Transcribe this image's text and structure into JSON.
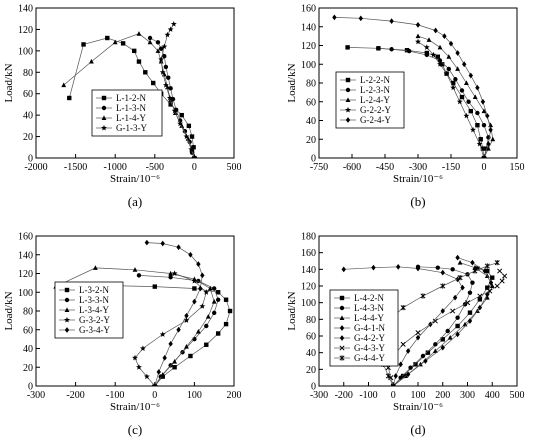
{
  "chart_data": [
    {
      "type": "line",
      "panel_label": "(a)",
      "xlabel": "Strain/10⁻⁶",
      "ylabel": "Load/kN",
      "xlim": [
        -2000,
        500
      ],
      "ylim": [
        0,
        140
      ],
      "xticks": [
        -2000,
        -1500,
        -1000,
        -500,
        0,
        500
      ],
      "yticks": [
        0,
        20,
        40,
        60,
        80,
        100,
        120,
        140
      ],
      "legend_position": "lower-left",
      "series": [
        {
          "name": "L-1-2-N",
          "marker": "square",
          "x": [
            0,
            -10,
            -30,
            -70,
            -160,
            -300,
            -420,
            -520,
            -620,
            -700,
            -760,
            -900,
            -1100,
            -1400,
            -1580
          ],
          "y": [
            0,
            10,
            20,
            30,
            40,
            50,
            60,
            70,
            80,
            90,
            100,
            107,
            112,
            106,
            56
          ]
        },
        {
          "name": "L-1-3-N",
          "marker": "circle",
          "x": [
            0,
            -30,
            -60,
            -120,
            -180,
            -230,
            -270,
            -300,
            -330,
            -360,
            -380,
            -420,
            -460,
            -560
          ],
          "y": [
            0,
            5,
            15,
            25,
            35,
            45,
            55,
            65,
            75,
            85,
            95,
            102,
            108,
            112
          ]
        },
        {
          "name": "L-1-4-Y",
          "marker": "triangle",
          "x": [
            0,
            -30,
            -80,
            -160,
            -240,
            -300,
            -340,
            -380,
            -420,
            -460,
            -560,
            -700,
            -1000,
            -1300,
            -1650
          ],
          "y": [
            0,
            8,
            18,
            30,
            42,
            54,
            66,
            78,
            90,
            100,
            108,
            116,
            108,
            90,
            68
          ]
        },
        {
          "name": "G-1-3-Y",
          "marker": "star",
          "x": [
            0,
            -40,
            -100,
            -180,
            -250,
            -310,
            -360,
            -400,
            -420,
            -380,
            -340,
            -300,
            -260
          ],
          "y": [
            0,
            8,
            20,
            32,
            44,
            56,
            68,
            80,
            92,
            104,
            115,
            120,
            125
          ]
        }
      ]
    },
    {
      "type": "line",
      "panel_label": "(b)",
      "xlabel": "Strain/10⁻⁶",
      "ylabel": "Load/kN",
      "xlim": [
        -750,
        150
      ],
      "ylim": [
        0,
        160
      ],
      "xticks": [
        -750,
        -600,
        -450,
        -300,
        -150,
        0,
        150
      ],
      "yticks": [
        0,
        20,
        40,
        60,
        80,
        100,
        120,
        140,
        160
      ],
      "legend_position": "center-left",
      "series": [
        {
          "name": "L-2-2-N",
          "marker": "square",
          "x": [
            0,
            -5,
            -15,
            -30,
            -60,
            -100,
            -140,
            -170,
            -190,
            -210,
            -260,
            -350,
            -480,
            -620
          ],
          "y": [
            0,
            10,
            20,
            35,
            50,
            65,
            80,
            90,
            100,
            108,
            112,
            115,
            117,
            118
          ]
        },
        {
          "name": "L-2-3-N",
          "marker": "circle",
          "x": [
            0,
            10,
            20,
            0,
            -30,
            -70,
            -100,
            -130,
            -160,
            -200,
            -260,
            -340,
            -420,
            -480
          ],
          "y": [
            0,
            10,
            22,
            35,
            48,
            60,
            72,
            84,
            95,
            104,
            110,
            114,
            116,
            117
          ]
        },
        {
          "name": "L-2-4-Y",
          "marker": "triangle",
          "x": [
            0,
            20,
            40,
            30,
            0,
            -40,
            -80,
            -120,
            -160,
            -200,
            -250,
            -300
          ],
          "y": [
            0,
            10,
            20,
            35,
            50,
            65,
            80,
            95,
            108,
            118,
            126,
            130
          ]
        },
        {
          "name": "G-2-2-Y",
          "marker": "star",
          "x": [
            0,
            -20,
            -50,
            -80,
            -110,
            -140,
            -170,
            -200,
            -230,
            -260,
            -300
          ],
          "y": [
            0,
            15,
            30,
            45,
            60,
            75,
            90,
            100,
            110,
            118,
            124
          ]
        },
        {
          "name": "G-2-4-Y",
          "marker": "diamond",
          "x": [
            0,
            20,
            30,
            15,
            -5,
            -30,
            -60,
            -90,
            -120,
            -150,
            -180,
            -220,
            -300,
            -420,
            -560,
            -680
          ],
          "y": [
            0,
            15,
            30,
            45,
            60,
            75,
            88,
            100,
            112,
            122,
            130,
            136,
            142,
            146,
            149,
            150
          ]
        }
      ]
    },
    {
      "type": "line",
      "panel_label": "(c)",
      "xlabel": "Strain/10⁻⁶",
      "ylabel": "Load/kN",
      "xlim": [
        -300,
        200
      ],
      "ylim": [
        0,
        160
      ],
      "xticks": [
        -300,
        -200,
        -100,
        0,
        100,
        200
      ],
      "yticks": [
        0,
        20,
        40,
        60,
        80,
        100,
        120,
        140,
        160
      ],
      "legend_position": "center-left",
      "series": [
        {
          "name": "L-3-2-N",
          "marker": "square",
          "x": [
            0,
            20,
            50,
            90,
            130,
            160,
            180,
            190,
            180,
            160,
            100,
            0,
            -100,
            -200
          ],
          "y": [
            0,
            10,
            20,
            32,
            44,
            56,
            66,
            80,
            92,
            100,
            104,
            106,
            107,
            108
          ]
        },
        {
          "name": "L-3-3-N",
          "marker": "circle",
          "x": [
            0,
            15,
            40,
            70,
            100,
            130,
            150,
            160,
            150,
            110,
            40,
            -40
          ],
          "y": [
            0,
            10,
            22,
            36,
            50,
            64,
            78,
            92,
            104,
            112,
            116,
            118
          ]
        },
        {
          "name": "L-3-4-Y",
          "marker": "triangle",
          "x": [
            0,
            20,
            50,
            80,
            110,
            135,
            150,
            140,
            100,
            40,
            -50,
            -150,
            -250
          ],
          "y": [
            0,
            12,
            26,
            42,
            58,
            74,
            90,
            104,
            114,
            120,
            124,
            126,
            106
          ]
        },
        {
          "name": "G-3-2-Y",
          "marker": "star",
          "x": [
            0,
            -20,
            -40,
            -50,
            -30,
            20,
            80,
            120,
            130,
            100,
            50
          ],
          "y": [
            0,
            10,
            20,
            30,
            40,
            55,
            70,
            85,
            100,
            112,
            120
          ]
        },
        {
          "name": "G-3-4-Y",
          "marker": "diamond",
          "x": [
            0,
            10,
            25,
            40,
            60,
            80,
            100,
            115,
            120,
            110,
            90,
            60,
            20,
            -20
          ],
          "y": [
            0,
            15,
            30,
            45,
            60,
            75,
            90,
            104,
            118,
            130,
            140,
            148,
            152,
            153
          ]
        }
      ]
    },
    {
      "type": "line",
      "panel_label": "(d)",
      "xlabel": "Strain/10⁻⁶",
      "ylabel": "Load/kN",
      "xlim": [
        -300,
        500
      ],
      "ylim": [
        0,
        180
      ],
      "xticks": [
        -300,
        -200,
        -100,
        0,
        100,
        200,
        300,
        400,
        500
      ],
      "yticks": [
        0,
        20,
        40,
        60,
        80,
        100,
        120,
        140,
        160,
        180
      ],
      "legend_position": "left",
      "series": [
        {
          "name": "L-4-2-N",
          "marker": "square",
          "x": [
            0,
            40,
            90,
            140,
            200,
            260,
            310,
            350,
            380,
            400,
            380,
            340
          ],
          "y": [
            0,
            12,
            26,
            40,
            56,
            72,
            88,
            104,
            118,
            130,
            138,
            141
          ]
        },
        {
          "name": "L-4-3-N",
          "marker": "circle",
          "x": [
            0,
            30,
            70,
            120,
            170,
            220,
            260,
            290,
            310,
            320,
            300,
            240,
            180,
            100
          ],
          "y": [
            0,
            10,
            22,
            36,
            50,
            66,
            82,
            98,
            112,
            124,
            134,
            140,
            142,
            143
          ]
        },
        {
          "name": "L-4-4-Y",
          "marker": "triangle",
          "x": [
            0,
            50,
            110,
            170,
            230,
            290,
            340,
            380,
            400,
            380,
            330,
            270
          ],
          "y": [
            0,
            12,
            26,
            42,
            58,
            74,
            90,
            106,
            120,
            132,
            142,
            148
          ]
        },
        {
          "name": "G-4-1-N",
          "marker": "diamond",
          "x": [
            0,
            10,
            30,
            60,
            100,
            150,
            200,
            250,
            280,
            260,
            200,
            100,
            20,
            -80,
            -200
          ],
          "y": [
            0,
            12,
            26,
            42,
            58,
            74,
            90,
            106,
            118,
            128,
            136,
            141,
            143,
            142,
            140
          ]
        },
        {
          "name": "G-4-2-Y",
          "marker": "diamond",
          "x": [
            0,
            60,
            130,
            200,
            260,
            310,
            350,
            380,
            395,
            370,
            320,
            260
          ],
          "y": [
            0,
            14,
            30,
            46,
            62,
            78,
            94,
            110,
            124,
            138,
            148,
            154
          ]
        },
        {
          "name": "G-4-3-Y",
          "marker": "x",
          "x": [
            0,
            -10,
            -20,
            0,
            40,
            100,
            170,
            240,
            300,
            350,
            390,
            420,
            440,
            450,
            430
          ],
          "y": [
            0,
            10,
            22,
            36,
            50,
            64,
            78,
            90,
            100,
            108,
            114,
            120,
            126,
            132,
            138
          ]
        },
        {
          "name": "G-4-4-Y",
          "marker": "asterisk",
          "x": [
            0,
            -20,
            -40,
            -60,
            -50,
            -20,
            40,
            120,
            200,
            270,
            330,
            380,
            420
          ],
          "y": [
            0,
            12,
            26,
            42,
            60,
            78,
            94,
            108,
            120,
            130,
            138,
            144,
            148
          ]
        }
      ]
    }
  ]
}
